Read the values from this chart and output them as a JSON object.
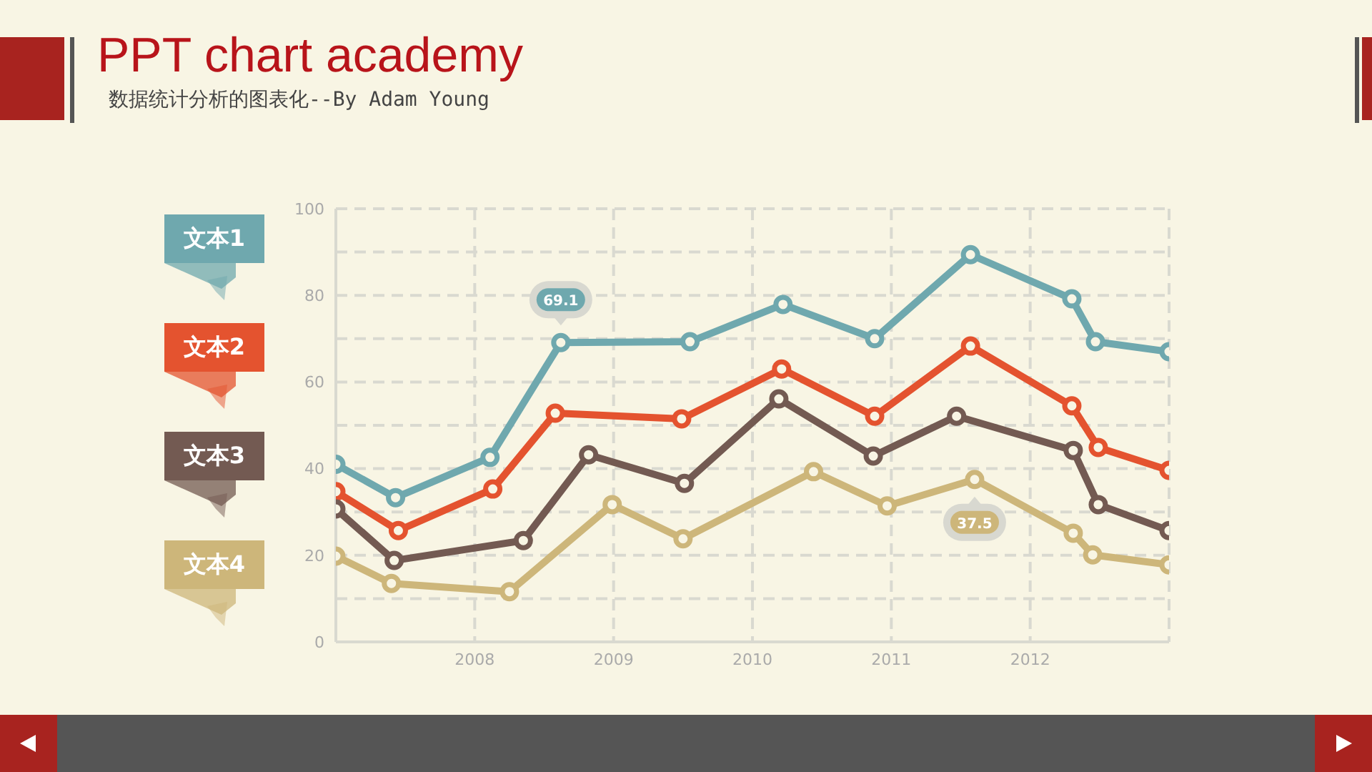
{
  "chart_data": {
    "type": "line",
    "title": "PPT chart academy",
    "subtitle": "数据统计分析的图表化--By Adam Young",
    "xlim": [
      2007,
      2013
    ],
    "xticks": [
      2008,
      2009,
      2010,
      2011,
      2012
    ],
    "ylim": [
      0,
      100
    ],
    "yticks": [
      0,
      {
        "value": 10,
        "label": null
      },
      20,
      {
        "value": 30,
        "label": null
      },
      40,
      {
        "value": 50,
        "label": null
      },
      60,
      {
        "value": 70,
        "label": null
      },
      80,
      {
        "value": 90,
        "label": null
      },
      100
    ],
    "grid": true,
    "legend": "left",
    "marker": "circle",
    "line_style": "solid",
    "series": [
      {
        "name": "文本1",
        "color": "#6fa8ae",
        "x": [
          2007,
          2007.43,
          2008.11,
          2008.62,
          2009.55,
          2010.22,
          2010.88,
          2011.57,
          2012.3,
          2012.47,
          2013
        ],
        "values": [
          41,
          33.3,
          42.6,
          69.1,
          69.3,
          77.9,
          70,
          89.4,
          79.2,
          69.3,
          67
        ]
      },
      {
        "name": "文本2",
        "color": "#e4532f",
        "x": [
          2007,
          2007.45,
          2008.13,
          2008.58,
          2009.49,
          2010.21,
          2010.88,
          2011.57,
          2012.3,
          2012.49,
          2013
        ],
        "values": [
          34.7,
          25.7,
          35.3,
          52.8,
          51.5,
          63,
          52.1,
          68.3,
          54.5,
          44.9,
          39.6
        ]
      },
      {
        "name": "文本3",
        "color": "#735a52",
        "x": [
          2007,
          2007.42,
          2008.35,
          2008.82,
          2009.51,
          2010.19,
          2010.87,
          2011.47,
          2012.31,
          2012.49,
          2013
        ],
        "values": [
          30.7,
          18.8,
          23.4,
          43.2,
          36.6,
          56.1,
          42.9,
          52.1,
          44.2,
          31.7,
          25.7
        ]
      },
      {
        "name": "文本4",
        "color": "#cdb67a",
        "x": [
          2007,
          2007.4,
          2008.25,
          2008.99,
          2009.5,
          2010.44,
          2010.97,
          2011.6,
          2012.31,
          2012.45,
          2013
        ],
        "values": [
          19.8,
          13.5,
          11.6,
          31.7,
          23.8,
          39.3,
          31.4,
          37.5,
          25.1,
          20.1,
          17.8
        ]
      }
    ],
    "annotations": [
      {
        "text": "69.1",
        "x": 2008.62,
        "y": 69.1
      },
      {
        "text": "37.5",
        "x": 2011.6,
        "y": 37.5
      }
    ]
  }
}
